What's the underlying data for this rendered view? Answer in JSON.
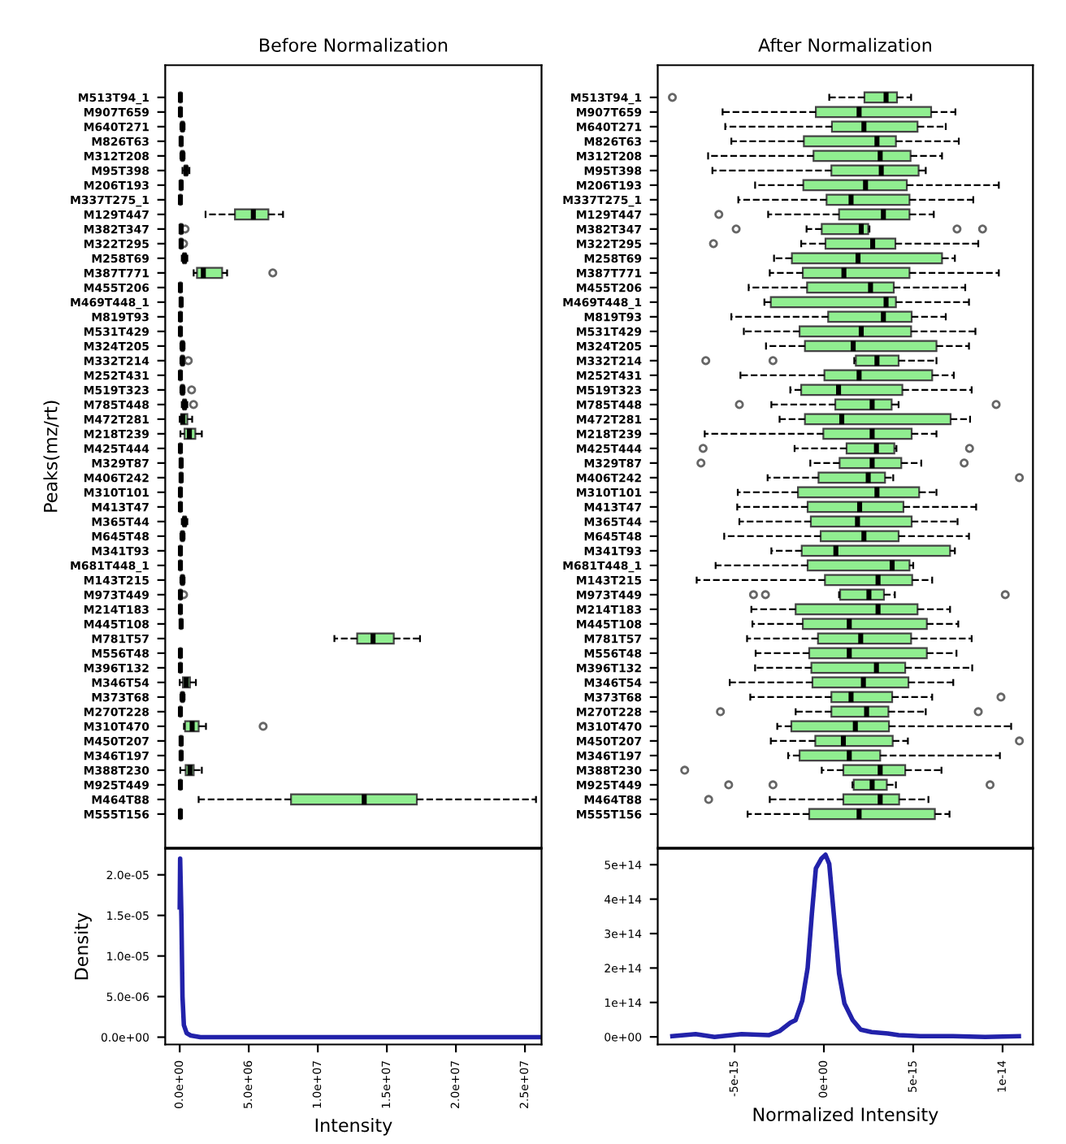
{
  "chart_data": [
    {
      "type": "box",
      "orientation": "horizontal",
      "title": "Before Normalization",
      "ylabel": "Peaks(mz/rt)",
      "tick_labels": "y",
      "xlim": [
        -1050000,
        26200000
      ],
      "categories": [
        "M513T94_1",
        "M907T659",
        "M640T271",
        "M826T63",
        "M312T208",
        "M95T398",
        "M206T193",
        "M337T275_1",
        "M129T447",
        "M382T347",
        "M322T295",
        "M258T69",
        "M387T771",
        "M455T206",
        "M469T448_1",
        "M819T93",
        "M531T429",
        "M324T205",
        "M332T214",
        "M252T431",
        "M519T323",
        "M785T448",
        "M472T281",
        "M218T239",
        "M425T444",
        "M329T87",
        "M406T242",
        "M310T101",
        "M413T47",
        "M365T44",
        "M645T48",
        "M341T93",
        "M681T448_1",
        "M143T215",
        "M973T449",
        "M214T183",
        "M445T108",
        "M781T57",
        "M556T48",
        "M396T132",
        "M346T54",
        "M373T68",
        "M270T228",
        "M310T470",
        "M450T207",
        "M346T197",
        "M388T230",
        "M925T449",
        "M464T88",
        "M555T156"
      ],
      "series": [
        {
          "color": "#90ee90",
          "boxes": [
            {
              "low": 0,
              "q1": 20000,
              "median": 50000,
              "q3": 80000,
              "high": 150000
            },
            {
              "low": 0,
              "q1": 20000,
              "median": 50000,
              "q3": 80000,
              "high": 150000
            },
            {
              "low": 50000,
              "q1": 150000,
              "median": 200000,
              "q3": 250000,
              "high": 350000
            },
            {
              "low": 0,
              "q1": 60000,
              "median": 100000,
              "q3": 140000,
              "high": 220000
            },
            {
              "low": 50000,
              "q1": 150000,
              "median": 200000,
              "q3": 250000,
              "high": 350000
            },
            {
              "low": 200000,
              "q1": 380000,
              "median": 450000,
              "q3": 520000,
              "high": 700000
            },
            {
              "low": 0,
              "q1": 60000,
              "median": 100000,
              "q3": 140000,
              "high": 220000
            },
            {
              "low": 0,
              "q1": 20000,
              "median": 50000,
              "q3": 80000,
              "high": 150000
            },
            {
              "low": 1870000,
              "q1": 4000000,
              "median": 5330000,
              "q3": 6420000,
              "high": 7480000
            },
            {
              "low": 0,
              "q1": 60000,
              "median": 100000,
              "q3": 140000,
              "high": 220000,
              "outliers": [
                390000
              ]
            },
            {
              "low": 0,
              "q1": 60000,
              "median": 100000,
              "q3": 140000,
              "high": 220000,
              "outliers": [
                280000
              ]
            },
            {
              "low": 150000,
              "q1": 280000,
              "median": 350000,
              "q3": 420000,
              "high": 550000
            },
            {
              "low": 1010000,
              "q1": 1250000,
              "median": 1710000,
              "q3": 3070000,
              "high": 3430000,
              "outliers": [
                6740000
              ]
            },
            {
              "low": 0,
              "q1": 20000,
              "median": 50000,
              "q3": 80000,
              "high": 150000
            },
            {
              "low": 0,
              "q1": 60000,
              "median": 100000,
              "q3": 140000,
              "high": 220000
            },
            {
              "low": 0,
              "q1": 20000,
              "median": 50000,
              "q3": 80000,
              "high": 150000
            },
            {
              "low": 0,
              "q1": 20000,
              "median": 50000,
              "q3": 80000,
              "high": 150000
            },
            {
              "low": 50000,
              "q1": 150000,
              "median": 200000,
              "q3": 250000,
              "high": 350000
            },
            {
              "low": 50000,
              "q1": 150000,
              "median": 200000,
              "q3": 250000,
              "high": 350000,
              "outliers": [
                620000
              ]
            },
            {
              "low": 0,
              "q1": 20000,
              "median": 50000,
              "q3": 80000,
              "high": 150000
            },
            {
              "low": 50000,
              "q1": 150000,
              "median": 200000,
              "q3": 250000,
              "high": 350000,
              "outliers": [
                860000
              ]
            },
            {
              "low": 150000,
              "q1": 280000,
              "median": 350000,
              "q3": 420000,
              "high": 550000,
              "outliers": [
                1000000
              ]
            },
            {
              "low": 0,
              "q1": 100000,
              "median": 230000,
              "q3": 550000,
              "high": 900000
            },
            {
              "low": 50000,
              "q1": 350000,
              "median": 700000,
              "q3": 1130000,
              "high": 1600000
            },
            {
              "low": 0,
              "q1": 20000,
              "median": 50000,
              "q3": 80000,
              "high": 150000
            },
            {
              "low": 0,
              "q1": 60000,
              "median": 100000,
              "q3": 140000,
              "high": 220000
            },
            {
              "low": 0,
              "q1": 60000,
              "median": 100000,
              "q3": 140000,
              "high": 220000
            },
            {
              "low": 0,
              "q1": 20000,
              "median": 50000,
              "q3": 80000,
              "high": 150000
            },
            {
              "low": 0,
              "q1": 20000,
              "median": 50000,
              "q3": 80000,
              "high": 150000
            },
            {
              "low": 150000,
              "q1": 280000,
              "median": 350000,
              "q3": 420000,
              "high": 550000
            },
            {
              "low": 50000,
              "q1": 150000,
              "median": 200000,
              "q3": 250000,
              "high": 350000
            },
            {
              "low": 0,
              "q1": 20000,
              "median": 50000,
              "q3": 80000,
              "high": 150000
            },
            {
              "low": 0,
              "q1": 20000,
              "median": 50000,
              "q3": 80000,
              "high": 150000
            },
            {
              "low": 50000,
              "q1": 150000,
              "median": 200000,
              "q3": 250000,
              "high": 350000
            },
            {
              "low": 0,
              "q1": 20000,
              "median": 50000,
              "q3": 80000,
              "high": 150000,
              "outliers": [
                280000
              ]
            },
            {
              "low": 0,
              "q1": 20000,
              "median": 50000,
              "q3": 80000,
              "high": 150000
            },
            {
              "low": 0,
              "q1": 60000,
              "median": 100000,
              "q3": 140000,
              "high": 220000
            },
            {
              "low": 11200000,
              "q1": 12850000,
              "median": 14000000,
              "q3": 15500000,
              "high": 17400000
            },
            {
              "low": 0,
              "q1": 20000,
              "median": 50000,
              "q3": 80000,
              "high": 150000
            },
            {
              "low": 0,
              "q1": 20000,
              "median": 50000,
              "q3": 80000,
              "high": 150000
            },
            {
              "low": 0,
              "q1": 230000,
              "median": 470000,
              "q3": 740000,
              "high": 1170000
            },
            {
              "low": 50000,
              "q1": 150000,
              "median": 200000,
              "q3": 250000,
              "high": 350000
            },
            {
              "low": 0,
              "q1": 20000,
              "median": 50000,
              "q3": 80000,
              "high": 150000
            },
            {
              "low": 310000,
              "q1": 390000,
              "median": 900000,
              "q3": 1370000,
              "high": 1900000,
              "outliers": [
                6040000
              ]
            },
            {
              "low": 0,
              "q1": 60000,
              "median": 100000,
              "q3": 140000,
              "high": 220000
            },
            {
              "low": 0,
              "q1": 60000,
              "median": 100000,
              "q3": 140000,
              "high": 220000
            },
            {
              "low": 40000,
              "q1": 430000,
              "median": 740000,
              "q3": 1010000,
              "high": 1600000
            },
            {
              "low": 0,
              "q1": 20000,
              "median": 50000,
              "q3": 80000,
              "high": 150000
            },
            {
              "low": 1370000,
              "q1": 8060000,
              "median": 13360000,
              "q3": 17170000,
              "high": 25800000
            },
            {
              "low": 0,
              "q1": 20000,
              "median": 50000,
              "q3": 80000,
              "high": 150000
            }
          ]
        }
      ]
    },
    {
      "type": "box",
      "orientation": "horizontal",
      "title": "After Normalization",
      "tick_labels": "y",
      "xlim": [
        -9.3e-15,
        1.17e-14
      ],
      "categories": [
        "M513T94_1",
        "M907T659",
        "M640T271",
        "M826T63",
        "M312T208",
        "M95T398",
        "M206T193",
        "M337T275_1",
        "M129T447",
        "M382T347",
        "M322T295",
        "M258T69",
        "M387T771",
        "M455T206",
        "M469T448_1",
        "M819T93",
        "M531T429",
        "M324T205",
        "M332T214",
        "M252T431",
        "M519T323",
        "M785T448",
        "M472T281",
        "M218T239",
        "M425T444",
        "M329T87",
        "M406T242",
        "M310T101",
        "M413T47",
        "M365T44",
        "M645T48",
        "M341T93",
        "M681T448_1",
        "M143T215",
        "M973T449",
        "M214T183",
        "M445T108",
        "M781T57",
        "M556T48",
        "M396T132",
        "M346T54",
        "M373T68",
        "M270T228",
        "M310T470",
        "M450T207",
        "M346T197",
        "M388T230",
        "M925T449",
        "M464T88",
        "M555T156"
      ],
      "series": [
        {
          "color": "#90ee90",
          "boxes": [
            {
              "low": 3e-16,
              "q1": 2.27e-15,
              "median": 3.48e-15,
              "q3": 4.09e-15,
              "high": 4.88e-15,
              "outliers": [
                -8.48e-15
              ]
            },
            {
              "low": -5.67e-15,
              "q1": -4.5e-16,
              "median": 1.97e-15,
              "q3": 6e-15,
              "high": 7.36e-15
            },
            {
              "low": -5.52e-15,
              "q1": 4.5e-16,
              "median": 2.24e-15,
              "q3": 5.24e-15,
              "high": 6.82e-15
            },
            {
              "low": -5.18e-15,
              "q1": -1.12e-15,
              "median": 2.97e-15,
              "q3": 4.03e-15,
              "high": 7.55e-15
            },
            {
              "low": -6.48e-15,
              "q1": -5.8e-16,
              "median": 3.15e-15,
              "q3": 4.85e-15,
              "high": 6.61e-15
            },
            {
              "low": -6.24e-15,
              "q1": 4.2e-16,
              "median": 3.21e-15,
              "q3": 5.3e-15,
              "high": 5.7e-15
            },
            {
              "low": -3.85e-15,
              "q1": -1.15e-15,
              "median": 2.33e-15,
              "q3": 4.64e-15,
              "high": 9.79e-15
            },
            {
              "low": -4.79e-15,
              "q1": 1.5e-16,
              "median": 1.52e-15,
              "q3": 4.79e-15,
              "high": 8.36e-15
            },
            {
              "low": -3.12e-15,
              "q1": 8.5e-16,
              "median": 3.33e-15,
              "q3": 4.79e-15,
              "high": 6.15e-15,
              "outliers": [
                -5.88e-15
              ]
            },
            {
              "low": -9.7e-16,
              "q1": -1.2e-16,
              "median": 2.09e-15,
              "q3": 2.48e-15,
              "high": 2.55e-15,
              "outliers": [
                -4.91e-15,
                7.45e-15,
                8.88e-15
              ]
            },
            {
              "low": -1.27e-15,
              "q1": 9e-17,
              "median": 2.73e-15,
              "q3": 4e-15,
              "high": 8.64e-15,
              "outliers": [
                -6.18e-15
              ]
            },
            {
              "low": -2.79e-15,
              "q1": -1.79e-15,
              "median": 1.91e-15,
              "q3": 6.61e-15,
              "high": 7.33e-15
            },
            {
              "low": -3.03e-15,
              "q1": -1.18e-15,
              "median": 1.12e-15,
              "q3": 4.79e-15,
              "high": 9.79e-15
            },
            {
              "low": -4.21e-15,
              "q1": -9.4e-16,
              "median": 2.61e-15,
              "q3": 3.91e-15,
              "high": 7.91e-15
            },
            {
              "low": -3.33e-15,
              "q1": -2.97e-15,
              "median": 3.48e-15,
              "q3": 4.03e-15,
              "high": 8.12e-15
            },
            {
              "low": -5.18e-15,
              "q1": 2.4e-16,
              "median": 3.33e-15,
              "q3": 4.91e-15,
              "high": 6.82e-15
            },
            {
              "low": -4.48e-15,
              "q1": -1.36e-15,
              "median": 2.09e-15,
              "q3": 4.88e-15,
              "high": 8.48e-15
            },
            {
              "low": -3.24e-15,
              "q1": -1.06e-15,
              "median": 1.64e-15,
              "q3": 6.3e-15,
              "high": 8.12e-15
            },
            {
              "low": 1.7e-15,
              "q1": 1.79e-15,
              "median": 2.97e-15,
              "q3": 4.18e-15,
              "high": 6.3e-15,
              "outliers": [
                -6.61e-15,
                -2.85e-15
              ]
            },
            {
              "low": -4.67e-15,
              "q1": 3e-17,
              "median": 1.97e-15,
              "q3": 6.06e-15,
              "high": 7.27e-15
            },
            {
              "low": -1.88e-15,
              "q1": -1.27e-15,
              "median": 8.2e-16,
              "q3": 4.39e-15,
              "high": 8.27e-15
            },
            {
              "low": -2.94e-15,
              "q1": 6.4e-16,
              "median": 2.7e-15,
              "q3": 3.79e-15,
              "high": 4.18e-15,
              "outliers": [
                -4.73e-15,
                9.64e-15
              ]
            },
            {
              "low": -2.48e-15,
              "q1": -1.06e-15,
              "median": 1e-15,
              "q3": 7.09e-15,
              "high": 8.18e-15
            },
            {
              "low": -6.67e-15,
              "q1": -3e-17,
              "median": 2.7e-15,
              "q3": 4.91e-15,
              "high": 6.3e-15
            },
            {
              "low": -1.64e-15,
              "q1": 1.27e-15,
              "median": 2.94e-15,
              "q3": 3.94e-15,
              "high": 4.06e-15,
              "outliers": [
                -6.76e-15,
                8.15e-15
              ]
            },
            {
              "low": -7.6e-16,
              "q1": 8.8e-16,
              "median": 2.7e-15,
              "q3": 4.33e-15,
              "high": 5.45e-15,
              "outliers": [
                -6.88e-15,
                7.85e-15
              ]
            },
            {
              "low": -3.15e-15,
              "q1": -3e-16,
              "median": 2.48e-15,
              "q3": 3.42e-15,
              "high": 3.88e-15,
              "outliers": [
                1.094e-14
              ]
            },
            {
              "low": -4.82e-15,
              "q1": -1.45e-15,
              "median": 2.97e-15,
              "q3": 5.33e-15,
              "high": 6.3e-15
            },
            {
              "low": -4.85e-15,
              "q1": -9.1e-16,
              "median": 2e-15,
              "q3": 4.45e-15,
              "high": 8.52e-15
            },
            {
              "low": -4.73e-15,
              "q1": -7.3e-16,
              "median": 1.88e-15,
              "q3": 4.91e-15,
              "high": 7.48e-15
            },
            {
              "low": -5.58e-15,
              "q1": -1.8e-16,
              "median": 2.24e-15,
              "q3": 4.18e-15,
              "high": 8.12e-15
            },
            {
              "low": -2.94e-15,
              "q1": -1.24e-15,
              "median": 6.7e-16,
              "q3": 7.06e-15,
              "high": 7.33e-15
            },
            {
              "low": -6.06e-15,
              "q1": -9.1e-16,
              "median": 3.82e-15,
              "q3": 4.79e-15,
              "high": 5e-15
            },
            {
              "low": -7.12e-15,
              "q1": 6e-17,
              "median": 3.03e-15,
              "q3": 4.94e-15,
              "high": 6.06e-15
            },
            {
              "low": 8.5e-16,
              "q1": 9.1e-16,
              "median": 2.52e-15,
              "q3": 3.36e-15,
              "high": 3.97e-15,
              "outliers": [
                -3.94e-15,
                -3.27e-15,
                1.015e-14
              ]
            },
            {
              "low": -4.06e-15,
              "q1": -1.58e-15,
              "median": 3.03e-15,
              "q3": 5.24e-15,
              "high": 7.06e-15
            },
            {
              "low": -4e-15,
              "q1": -1.18e-15,
              "median": 1.42e-15,
              "q3": 5.76e-15,
              "high": 7.52e-15
            },
            {
              "low": -4.3e-15,
              "q1": -3.3e-16,
              "median": 2.06e-15,
              "q3": 4.88e-15,
              "high": 8.27e-15
            },
            {
              "low": -3.82e-15,
              "q1": -8.2e-16,
              "median": 1.42e-15,
              "q3": 5.76e-15,
              "high": 7.42e-15
            },
            {
              "low": -3.85e-15,
              "q1": -7e-16,
              "median": 2.94e-15,
              "q3": 4.55e-15,
              "high": 8.3e-15
            },
            {
              "low": -5.27e-15,
              "q1": -6.4e-16,
              "median": 2.21e-15,
              "q3": 4.73e-15,
              "high": 7.24e-15
            },
            {
              "low": -4.12e-15,
              "q1": 4.2e-16,
              "median": 1.52e-15,
              "q3": 3.82e-15,
              "high": 6.06e-15,
              "outliers": [
                9.91e-15
              ]
            },
            {
              "low": -1.58e-15,
              "q1": 4.2e-16,
              "median": 2.39e-15,
              "q3": 3.61e-15,
              "high": 5.7e-15,
              "outliers": [
                -5.79e-15,
                8.64e-15
              ]
            },
            {
              "low": -2.61e-15,
              "q1": -1.82e-15,
              "median": 1.76e-15,
              "q3": 3.64e-15,
              "high": 1.048e-14
            },
            {
              "low": -2.97e-15,
              "q1": -4.8e-16,
              "median": 1.09e-15,
              "q3": 3.85e-15,
              "high": 4.7e-15,
              "outliers": [
                1.094e-14
              ]
            },
            {
              "low": -2e-15,
              "q1": -1.36e-15,
              "median": 1.42e-15,
              "q3": 3.15e-15,
              "high": 9.85e-15
            },
            {
              "low": -1.2e-16,
              "q1": 1.09e-15,
              "median": 3.15e-15,
              "q3": 4.55e-15,
              "high": 6.58e-15,
              "outliers": [
                -7.79e-15
              ]
            },
            {
              "low": 1.6e-15,
              "q1": 1.67e-15,
              "median": 2.7e-15,
              "q3": 3.52e-15,
              "high": 4.03e-15,
              "outliers": [
                -5.33e-15,
                -2.85e-15,
                9.3e-15
              ]
            },
            {
              "low": -3.03e-15,
              "q1": 1.09e-15,
              "median": 3.15e-15,
              "q3": 4.21e-15,
              "high": 5.85e-15,
              "outliers": [
                -6.45e-15
              ]
            },
            {
              "low": -4.27e-15,
              "q1": -8.2e-16,
              "median": 1.97e-15,
              "q3": 6.21e-15,
              "high": 7.03e-15
            }
          ]
        }
      ]
    },
    {
      "type": "line",
      "xlabel": "Intensity",
      "ylabel": "Density",
      "xlim": [
        -1050000,
        26200000
      ],
      "ylim": [
        -9e-07,
        2.32e-05
      ],
      "xticks": [
        {
          "value": 0,
          "label": "0.0e+00"
        },
        {
          "value": 5000000,
          "label": "5.0e+06"
        },
        {
          "value": 10000000,
          "label": "1.0e+07"
        },
        {
          "value": 15000000,
          "label": "1.5e+07"
        },
        {
          "value": 20000000,
          "label": "2.0e+07"
        },
        {
          "value": 25000000,
          "label": "2.5e+07"
        }
      ],
      "yticks": [
        {
          "value": 0,
          "label": "0.0e+00"
        },
        {
          "value": 5e-06,
          "label": "5.0e-06"
        },
        {
          "value": 1e-05,
          "label": "1.0e-05"
        },
        {
          "value": 1.5e-05,
          "label": "1.5e-05"
        },
        {
          "value": 2e-05,
          "label": "2.0e-05"
        }
      ],
      "series": [
        {
          "color": "#2222aa",
          "x": [
            0,
            30000,
            120000,
            200000,
            300000,
            500000,
            800000,
            1500000,
            5000000,
            10000000,
            20000000,
            26000000
          ],
          "values": [
            1.6e-05,
            2.2e-05,
            1.5e-05,
            5e-06,
            1.5e-06,
            5e-07,
            2e-07,
            0,
            0,
            0,
            0,
            0
          ]
        }
      ]
    },
    {
      "type": "line",
      "xlabel": "Normalized Intensity",
      "xlim": [
        -9.3e-15,
        1.17e-14
      ],
      "ylim": [
        -22000000000000.0,
        546000000000000.0
      ],
      "xticks": [
        {
          "value": -5e-15,
          "label": "-5e-15"
        },
        {
          "value": 0,
          "label": "0e+00"
        },
        {
          "value": 5e-15,
          "label": "5e-15"
        },
        {
          "value": 1e-14,
          "label": "1e-14"
        }
      ],
      "yticks": [
        {
          "value": 0,
          "label": "0e+00"
        },
        {
          "value": 100000000000000.0,
          "label": "1e+14"
        },
        {
          "value": 200000000000000.0,
          "label": "2e+14"
        },
        {
          "value": 300000000000000.0,
          "label": "3e+14"
        },
        {
          "value": 400000000000000.0,
          "label": "4e+14"
        },
        {
          "value": 500000000000000.0,
          "label": "5e+14"
        }
      ],
      "series": [
        {
          "color": "#2222aa",
          "x": [
            -8.48e-15,
            -7.18e-15,
            -6.12e-15,
            -4.61e-15,
            -3.09e-15,
            -2.48e-15,
            -1.88e-15,
            -1.58e-15,
            -1.21e-15,
            -9.1e-16,
            -6.7e-16,
            -4.5e-16,
            -1.5e-16,
            9e-17,
            3e-16,
            5.5e-16,
            8.5e-16,
            1.15e-15,
            1.61e-15,
            2.06e-15,
            2.67e-15,
            3.58e-15,
            4.18e-15,
            5.39e-15,
            7.21e-15,
            9.03e-15,
            1.091e-14
          ],
          "values": [
            2000000000000.0,
            8000000000000.0,
            0,
            8000000000000.0,
            5000000000000.0,
            17000000000000.0,
            41000000000000.0,
            49000000000000.0,
            105000000000000.0,
            200000000000000.0,
            359000000000000.0,
            489000000000000.0,
            517000000000000.0,
            529000000000000.0,
            502000000000000.0,
            359000000000000.0,
            184000000000000.0,
            97000000000000.0,
            49000000000000.0,
            21000000000000.0,
            14000000000000.0,
            10000000000000.0,
            5000000000000.0,
            2000000000000.0,
            2000000000000.0,
            0,
            2000000000000.0
          ]
        }
      ]
    }
  ]
}
